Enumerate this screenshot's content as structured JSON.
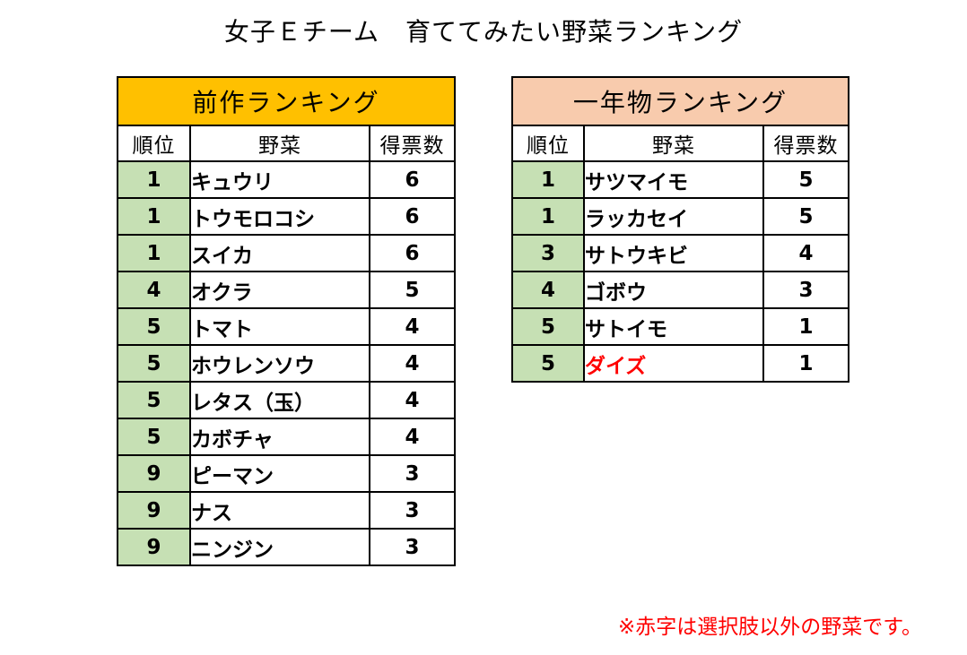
{
  "title": "女子Ｅチーム　育ててみたい野菜ランキング",
  "headers": {
    "rank": "順位",
    "vegetable": "野菜",
    "votes": "得票数"
  },
  "previous": {
    "title": "前作ランキング",
    "rows": [
      {
        "rank": "1",
        "name": "キュウリ",
        "votes": "6"
      },
      {
        "rank": "1",
        "name": "トウモロコシ",
        "votes": "6"
      },
      {
        "rank": "1",
        "name": "スイカ",
        "votes": "6"
      },
      {
        "rank": "4",
        "name": "オクラ",
        "votes": "5"
      },
      {
        "rank": "5",
        "name": "トマト",
        "votes": "4"
      },
      {
        "rank": "5",
        "name": "ホウレンソウ",
        "votes": "4"
      },
      {
        "rank": "5",
        "name": "レタス（玉）",
        "votes": "4"
      },
      {
        "rank": "5",
        "name": "カボチャ",
        "votes": "4"
      },
      {
        "rank": "9",
        "name": "ピーマン",
        "votes": "3"
      },
      {
        "rank": "9",
        "name": "ナス",
        "votes": "3"
      },
      {
        "rank": "9",
        "name": "ニンジン",
        "votes": "3"
      }
    ]
  },
  "annual": {
    "title": "一年物ランキング",
    "rows": [
      {
        "rank": "1",
        "name": "サツマイモ",
        "votes": "5"
      },
      {
        "rank": "1",
        "name": "ラッカセイ",
        "votes": "5"
      },
      {
        "rank": "3",
        "name": "サトウキビ",
        "votes": "4"
      },
      {
        "rank": "4",
        "name": "ゴボウ",
        "votes": "3"
      },
      {
        "rank": "5",
        "name": "サトイモ",
        "votes": "1"
      },
      {
        "rank": "5",
        "name": "ダイズ",
        "votes": "1",
        "outside_choices": true
      }
    ]
  },
  "footnote": "※赤字は選択肢以外の野菜です。",
  "colors": {
    "previous_header_bg": "#ffc000",
    "annual_header_bg": "#f8cbad",
    "rank_cell_bg": "#c6e0b4",
    "outside_choice_text": "#ff0000"
  }
}
